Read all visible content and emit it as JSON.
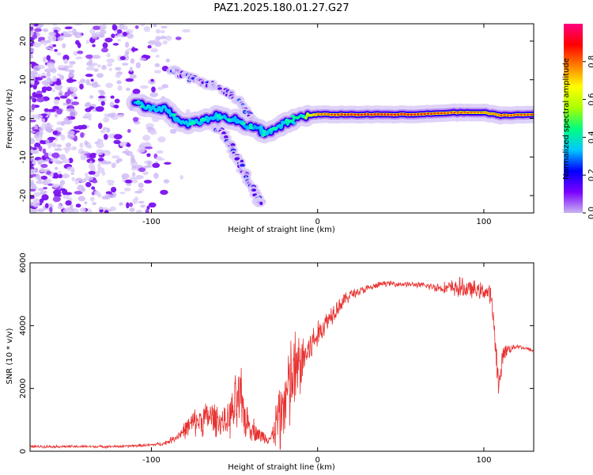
{
  "figure_title": "PAZ1.2025.180.01.27.G27",
  "chart_data": [
    {
      "type": "heatmap",
      "xlabel": "Height of straight line (km)",
      "ylabel": "Frequency (Hz)",
      "xlim": [
        -173,
        130
      ],
      "ylim": [
        -24.5,
        24.5
      ],
      "xticks": [
        -100,
        0,
        100
      ],
      "yticks": [
        -20,
        -10,
        0,
        10,
        20
      ],
      "colorbar": {
        "label": "Normalized spectral amplitude",
        "range": [
          0,
          1
        ],
        "ticks": [
          0.0,
          0.2,
          0.4,
          0.6,
          0.8
        ],
        "colormap": [
          "#c8b4f0",
          "#7a00ff",
          "#0000ff",
          "#00c8ff",
          "#00ff7f",
          "#aaff00",
          "#ffff00",
          "#ff8000",
          "#ff0000",
          "#ff0080"
        ]
      },
      "ridge": [
        {
          "x": -110,
          "y": 3.5,
          "v": 0.25
        },
        {
          "x": -100,
          "y": 3.0,
          "v": 0.3
        },
        {
          "x": -90,
          "y": 2.2,
          "v": 0.3
        },
        {
          "x": -82,
          "y": -1.5,
          "v": 0.3
        },
        {
          "x": -72,
          "y": -1.0,
          "v": 0.3
        },
        {
          "x": -62,
          "y": 0.5,
          "v": 0.28
        },
        {
          "x": -52,
          "y": 0.0,
          "v": 0.28
        },
        {
          "x": -44,
          "y": -1.5,
          "v": 0.25
        },
        {
          "x": -35,
          "y": -3.0,
          "v": 0.25
        },
        {
          "x": -30,
          "y": -4.0,
          "v": 0.3
        },
        {
          "x": -20,
          "y": -1.5,
          "v": 0.35
        },
        {
          "x": -10,
          "y": 0.5,
          "v": 0.5
        },
        {
          "x": 0,
          "y": 1.0,
          "v": 0.8
        },
        {
          "x": 20,
          "y": 1.0,
          "v": 0.9
        },
        {
          "x": 40,
          "y": 1.0,
          "v": 0.92
        },
        {
          "x": 60,
          "y": 1.0,
          "v": 0.9
        },
        {
          "x": 80,
          "y": 1.5,
          "v": 0.85
        },
        {
          "x": 100,
          "y": 1.5,
          "v": 0.8
        },
        {
          "x": 110,
          "y": 0.8,
          "v": 0.85
        },
        {
          "x": 130,
          "y": 1.0,
          "v": 0.85
        }
      ],
      "branches": [
        [
          {
            "x": -88,
            "y": 12.5
          },
          {
            "x": -80,
            "y": 11.0
          },
          {
            "x": -70,
            "y": 9.5
          },
          {
            "x": -60,
            "y": 8.0
          },
          {
            "x": -52,
            "y": 6.0
          },
          {
            "x": -45,
            "y": 3.0
          },
          {
            "x": -40,
            "y": 0.0
          },
          {
            "x": -35,
            "y": -2.5
          }
        ],
        [
          {
            "x": -62,
            "y": -2.0
          },
          {
            "x": -55,
            "y": -5.0
          },
          {
            "x": -50,
            "y": -9.0
          },
          {
            "x": -45,
            "y": -13.0
          },
          {
            "x": -40,
            "y": -17.5
          },
          {
            "x": -36,
            "y": -21.0
          },
          {
            "x": -34,
            "y": -22.5
          }
        ]
      ],
      "noise_region": {
        "x_from": -173,
        "x_to": -90
      }
    },
    {
      "type": "line",
      "xlabel": "Height of straight line (km)",
      "ylabel": "SNR (10 * v/v)",
      "xlim": [
        -173,
        130
      ],
      "ylim": [
        0,
        6000
      ],
      "xticks": [
        -100,
        0,
        100
      ],
      "yticks": [
        0,
        2000,
        4000,
        6000
      ],
      "color": "#e8312f",
      "envelope": [
        {
          "x": -173,
          "y": 150,
          "a": 50
        },
        {
          "x": -120,
          "y": 150,
          "a": 50
        },
        {
          "x": -100,
          "y": 200,
          "a": 60
        },
        {
          "x": -92,
          "y": 250,
          "a": 80
        },
        {
          "x": -85,
          "y": 450,
          "a": 150
        },
        {
          "x": -75,
          "y": 900,
          "a": 500
        },
        {
          "x": -65,
          "y": 1100,
          "a": 700
        },
        {
          "x": -55,
          "y": 900,
          "a": 500
        },
        {
          "x": -47,
          "y": 1600,
          "a": 1500
        },
        {
          "x": -42,
          "y": 900,
          "a": 600
        },
        {
          "x": -35,
          "y": 500,
          "a": 300
        },
        {
          "x": -28,
          "y": 400,
          "a": 200
        },
        {
          "x": -22,
          "y": 1300,
          "a": 1600
        },
        {
          "x": -15,
          "y": 2300,
          "a": 1900
        },
        {
          "x": -8,
          "y": 3000,
          "a": 1000
        },
        {
          "x": 0,
          "y": 3700,
          "a": 500
        },
        {
          "x": 10,
          "y": 4500,
          "a": 400
        },
        {
          "x": 20,
          "y": 5000,
          "a": 200
        },
        {
          "x": 40,
          "y": 5350,
          "a": 100
        },
        {
          "x": 60,
          "y": 5300,
          "a": 100
        },
        {
          "x": 75,
          "y": 5200,
          "a": 200
        },
        {
          "x": 85,
          "y": 5200,
          "a": 400
        },
        {
          "x": 100,
          "y": 5100,
          "a": 300
        },
        {
          "x": 104,
          "y": 5000,
          "a": 400
        },
        {
          "x": 107,
          "y": 3500,
          "a": 500
        },
        {
          "x": 109,
          "y": 2000,
          "a": 600
        },
        {
          "x": 112,
          "y": 3200,
          "a": 300
        },
        {
          "x": 120,
          "y": 3350,
          "a": 80
        },
        {
          "x": 130,
          "y": 3200,
          "a": 80
        }
      ]
    }
  ]
}
